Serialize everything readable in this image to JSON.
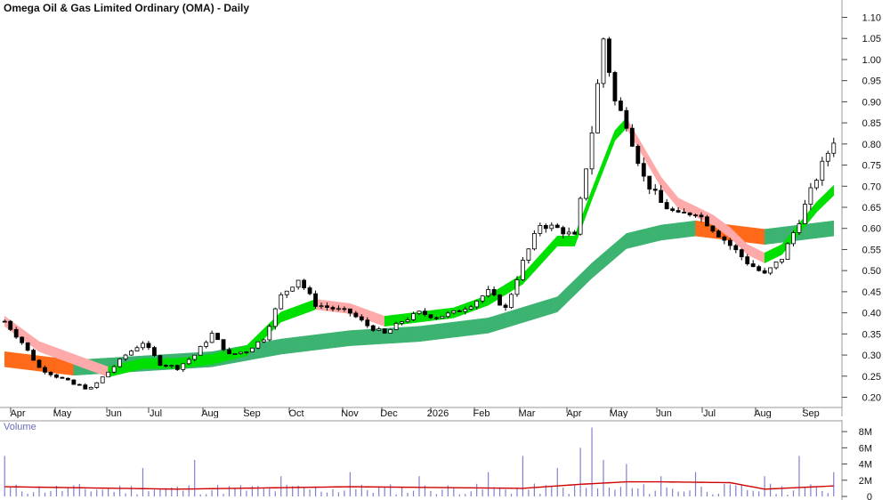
{
  "title": "Omega Oil & Gas Limited Ordinary (OMA) - Daily",
  "volume_title": "Volume",
  "colors": {
    "candle": "#000000",
    "short_ma_up": "#00e000",
    "short_ma_down": "#ffaaaa",
    "long_ma_up": "#3cb371",
    "long_ma_down": "#ff6a1a",
    "volume_bar": "#8080d0",
    "volume_ma": "#d00000",
    "grid": "#cccccc"
  },
  "chart_data": [
    {
      "type": "line",
      "name": "price",
      "x_axis_labels": [
        "Apr",
        "May",
        "Jun",
        "Jul",
        "Aug",
        "Sep",
        "Oct",
        "Nov",
        "Dec",
        "2026",
        "Feb",
        "Mar",
        "Apr",
        "May",
        "Jun",
        "Jul",
        "Aug",
        "Sep"
      ],
      "y_ticks": [
        0.2,
        0.25,
        0.3,
        0.35,
        0.4,
        0.45,
        0.5,
        0.55,
        0.6,
        0.65,
        0.7,
        0.75,
        0.8,
        0.85,
        0.9,
        0.95,
        1.0,
        1.05,
        1.1
      ],
      "ylim": [
        0.18,
        1.12
      ],
      "close_keypoints": [
        [
          0,
          0.38
        ],
        [
          3,
          0.33
        ],
        [
          6,
          0.27
        ],
        [
          9,
          0.25
        ],
        [
          12,
          0.23
        ],
        [
          15,
          0.22
        ],
        [
          18,
          0.26
        ],
        [
          21,
          0.3
        ],
        [
          24,
          0.33
        ],
        [
          27,
          0.28
        ],
        [
          30,
          0.27
        ],
        [
          33,
          0.3
        ],
        [
          36,
          0.35
        ],
        [
          39,
          0.3
        ],
        [
          42,
          0.31
        ],
        [
          45,
          0.34
        ],
        [
          48,
          0.44
        ],
        [
          51,
          0.48
        ],
        [
          54,
          0.42
        ],
        [
          57,
          0.41
        ],
        [
          60,
          0.4
        ],
        [
          63,
          0.37
        ],
        [
          66,
          0.35
        ],
        [
          69,
          0.38
        ],
        [
          72,
          0.4
        ],
        [
          75,
          0.39
        ],
        [
          78,
          0.4
        ],
        [
          81,
          0.42
        ],
        [
          84,
          0.45
        ],
        [
          87,
          0.41
        ],
        [
          90,
          0.52
        ],
        [
          93,
          0.61
        ],
        [
          96,
          0.6
        ],
        [
          99,
          0.58
        ],
        [
          102,
          0.83
        ],
        [
          104,
          1.05
        ],
        [
          106,
          0.9
        ],
        [
          108,
          0.85
        ],
        [
          111,
          0.72
        ],
        [
          114,
          0.66
        ],
        [
          117,
          0.63
        ],
        [
          120,
          0.64
        ],
        [
          123,
          0.6
        ],
        [
          126,
          0.56
        ],
        [
          129,
          0.52
        ],
        [
          132,
          0.49
        ],
        [
          135,
          0.53
        ],
        [
          138,
          0.62
        ],
        [
          141,
          0.72
        ],
        [
          144,
          0.81
        ]
      ],
      "short_ma_keypoints": [
        [
          0,
          0.38
        ],
        [
          6,
          0.32
        ],
        [
          12,
          0.29
        ],
        [
          18,
          0.26
        ],
        [
          24,
          0.28
        ],
        [
          30,
          0.28
        ],
        [
          36,
          0.29
        ],
        [
          42,
          0.31
        ],
        [
          48,
          0.39
        ],
        [
          54,
          0.42
        ],
        [
          60,
          0.41
        ],
        [
          66,
          0.38
        ],
        [
          72,
          0.39
        ],
        [
          78,
          0.4
        ],
        [
          84,
          0.43
        ],
        [
          90,
          0.48
        ],
        [
          96,
          0.57
        ],
        [
          99,
          0.57
        ],
        [
          102,
          0.68
        ],
        [
          106,
          0.82
        ],
        [
          108,
          0.85
        ],
        [
          111,
          0.78
        ],
        [
          114,
          0.71
        ],
        [
          117,
          0.66
        ],
        [
          120,
          0.64
        ],
        [
          123,
          0.62
        ],
        [
          126,
          0.59
        ],
        [
          129,
          0.55
        ],
        [
          132,
          0.53
        ],
        [
          135,
          0.55
        ],
        [
          138,
          0.6
        ],
        [
          141,
          0.65
        ],
        [
          144,
          0.69
        ]
      ],
      "long_ma_keypoints": [
        [
          0,
          0.29
        ],
        [
          12,
          0.27
        ],
        [
          24,
          0.28
        ],
        [
          36,
          0.29
        ],
        [
          48,
          0.32
        ],
        [
          60,
          0.34
        ],
        [
          72,
          0.35
        ],
        [
          84,
          0.37
        ],
        [
          96,
          0.42
        ],
        [
          102,
          0.5
        ],
        [
          108,
          0.57
        ],
        [
          114,
          0.59
        ],
        [
          120,
          0.6
        ],
        [
          126,
          0.59
        ],
        [
          132,
          0.58
        ],
        [
          138,
          0.59
        ],
        [
          144,
          0.6
        ]
      ]
    },
    {
      "type": "bar",
      "name": "volume",
      "y_ticks": [
        "0",
        "2M",
        "4M",
        "6M",
        "8M"
      ],
      "ylim": [
        0,
        9
      ],
      "unit": "M",
      "spikes": [
        [
          0,
          5
        ],
        [
          24,
          3.5
        ],
        [
          33,
          4.5
        ],
        [
          48,
          2.5
        ],
        [
          60,
          3
        ],
        [
          72,
          2.5
        ],
        [
          84,
          3
        ],
        [
          90,
          5
        ],
        [
          96,
          3.5
        ],
        [
          100,
          6
        ],
        [
          102,
          8.5
        ],
        [
          104,
          4.5
        ],
        [
          108,
          4
        ],
        [
          114,
          2.5
        ],
        [
          120,
          3
        ],
        [
          132,
          2.5
        ],
        [
          138,
          5
        ],
        [
          144,
          3
        ]
      ],
      "ma_keypoints": [
        [
          0,
          1.2
        ],
        [
          30,
          0.9
        ],
        [
          60,
          1.2
        ],
        [
          90,
          1.0
        ],
        [
          100,
          1.5
        ],
        [
          108,
          1.8
        ],
        [
          114,
          1.8
        ],
        [
          126,
          1.7
        ],
        [
          132,
          0.9
        ],
        [
          144,
          1.3
        ]
      ]
    }
  ]
}
